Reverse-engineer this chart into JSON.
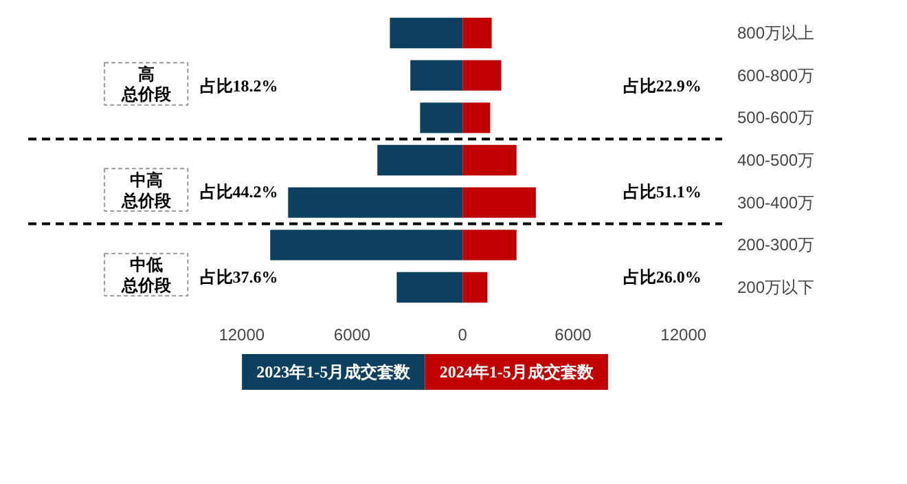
{
  "chart_data": {
    "type": "bar",
    "orientation": "horizontal",
    "stacked": true,
    "categories": [
      "800万以上",
      "600-800万",
      "500-600万",
      "400-500万",
      "300-400万",
      "200-300万",
      "200万以下"
    ],
    "series": [
      {
        "name": "2023年1-5月成交套数",
        "color": "#0d3f5f",
        "values": [
          -3950,
          -2840,
          -2310,
          -4630,
          -9480,
          -10450,
          -3580
        ]
      },
      {
        "name": "2024年1-5月成交套数",
        "color": "#c00000",
        "values": [
          1580,
          2100,
          1500,
          2930,
          3980,
          2930,
          1350
        ]
      }
    ],
    "xlim": [
      -23600,
      14100
    ],
    "xticks": [
      {
        "value": -12000,
        "label": "12000"
      },
      {
        "value": -6000,
        "label": "6000"
      },
      0,
      6000,
      12000
    ],
    "annotations": [
      "高",
      "总价段",
      "占比18.2%",
      "占比22.9%",
      "中高",
      "总价段",
      "占比44.2%",
      "占比51.1%",
      "中低",
      "总价段",
      "占比37.6%",
      "占比26.0%"
    ],
    "grid": false,
    "legend": "bottom"
  }
}
